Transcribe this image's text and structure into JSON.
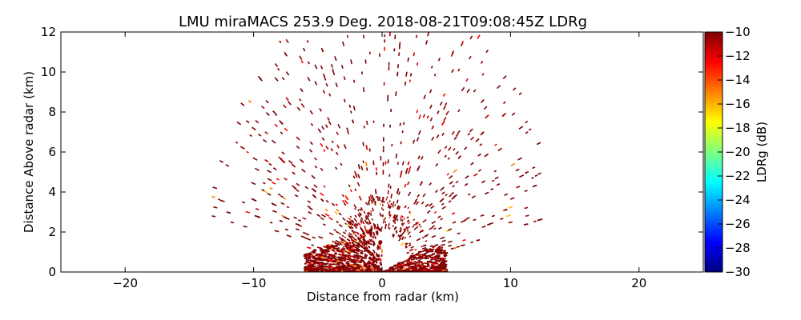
{
  "chart_data": {
    "type": "heatmap",
    "plot_kind": "radar RHI scan (scattered range-gate returns)",
    "title": "LMU miraMACS 253.9 Deg. 2018-08-21T09:08:45Z  LDRg",
    "xlabel": "Distance from radar (km)",
    "ylabel": "Distance Above radar  (km)",
    "xlim": [
      -25,
      25
    ],
    "ylim": [
      0,
      12
    ],
    "xticks": [
      -20,
      -10,
      0,
      10,
      20
    ],
    "yticks": [
      0,
      2,
      4,
      6,
      8,
      10,
      12
    ],
    "grid": false,
    "colorbar": {
      "label": "LDRg (dB)",
      "range": [
        -30,
        -10
      ],
      "ticks": [
        -10,
        -12,
        -14,
        -16,
        -18,
        -20,
        -22,
        -24,
        -26,
        -28,
        -30
      ],
      "colormap": "jet",
      "colors": [
        "#00007f",
        "#0000ff",
        "#007fff",
        "#00ffff",
        "#7fff7f",
        "#ffff00",
        "#ff7f00",
        "#ff0000",
        "#7f0000"
      ]
    },
    "data_description": {
      "dominant_value_dB": -10,
      "dense_echo_region": {
        "x_range_km": [
          -6,
          5
        ],
        "y_range_km": [
          0,
          2.5
        ]
      },
      "scan_edge_max_range_km": 14,
      "sparse_returns_up_to_km": 12
    }
  }
}
